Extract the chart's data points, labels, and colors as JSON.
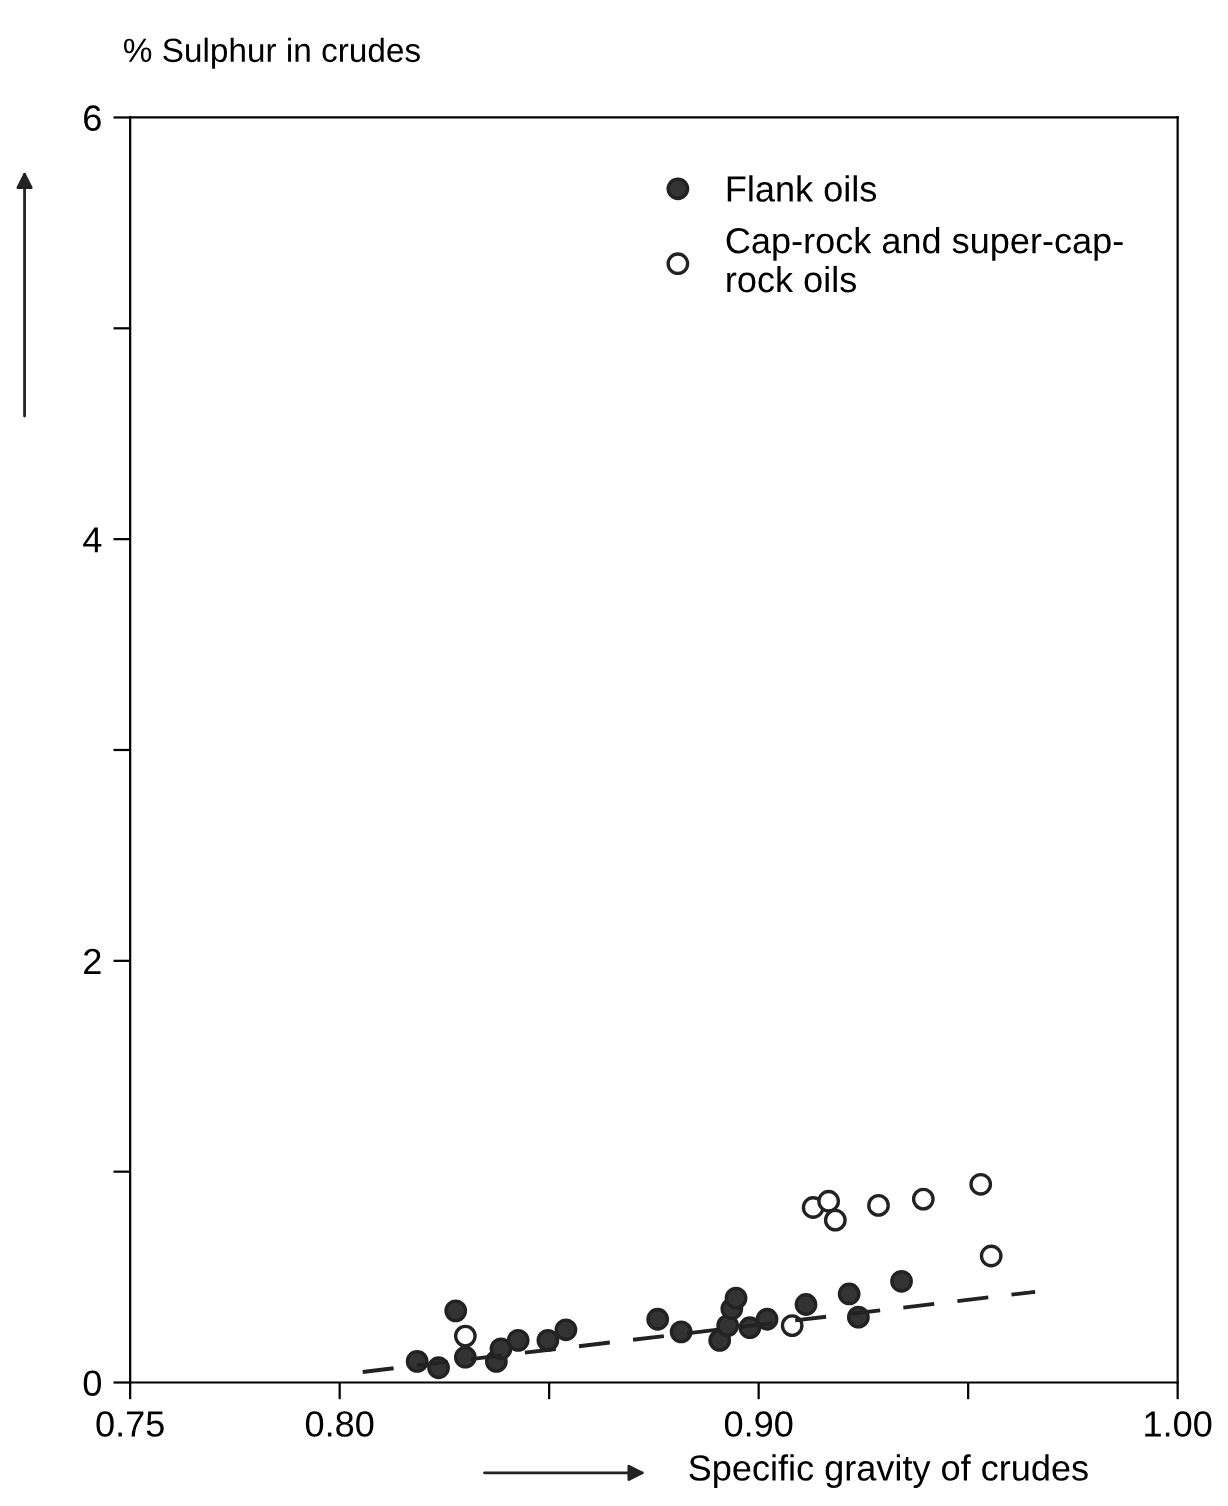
{
  "chart_data": {
    "type": "scatter",
    "xlabel": "Specific gravity of crudes",
    "ylabel": "% Sulphur in crudes",
    "xlim": [
      0.75,
      1.0
    ],
    "ylim": [
      0,
      6
    ],
    "xticks": [
      {
        "value": 0.75,
        "label": "0.75"
      },
      {
        "value": 0.8,
        "label": "0.80"
      },
      {
        "value": 0.85,
        "label": null
      },
      {
        "value": 0.9,
        "label": "0.90"
      },
      {
        "value": 0.95,
        "label": null
      },
      {
        "value": 1.0,
        "label": "1.00"
      }
    ],
    "yticks": [
      0,
      {
        "value": 1,
        "label": null
      },
      2,
      {
        "value": 3,
        "label": null
      },
      4,
      {
        "value": 5,
        "label": null
      },
      6
    ],
    "grid": false,
    "legend": "top right",
    "marker": "circle",
    "series": [
      {
        "name": "Flank oils",
        "color": "#333333",
        "x": [
          0.8185,
          0.8236,
          0.8277,
          0.83,
          0.8374,
          0.8385,
          0.8426,
          0.8497,
          0.854,
          0.8759,
          0.8815,
          0.8907,
          0.8926,
          0.8936,
          0.8946,
          0.8979,
          0.902,
          0.9113,
          0.9216,
          0.9238,
          0.9341
        ],
        "values": [
          0.1,
          0.07,
          0.34,
          0.12,
          0.1,
          0.16,
          0.2,
          0.2,
          0.25,
          0.3,
          0.24,
          0.2,
          0.27,
          0.35,
          0.4,
          0.26,
          0.3,
          0.37,
          0.42,
          0.31,
          0.48
        ]
      },
      {
        "name": "Cap-rock and super-cap-\nrock oils",
        "color": "#ffffff",
        "x": [
          0.83,
          0.908,
          0.913,
          0.9167,
          0.9183,
          0.9286,
          0.9393,
          0.953,
          0.9555
        ],
        "values": [
          0.22,
          0.27,
          0.83,
          0.86,
          0.77,
          0.84,
          0.87,
          0.94,
          0.6
        ]
      },
      {
        "color": "#222222",
        "type": "line",
        "line_style": "dashed",
        "marker": "none",
        "x": [
          0.8055,
          0.966
        ],
        "values": [
          0.05,
          0.43
        ]
      }
    ]
  }
}
